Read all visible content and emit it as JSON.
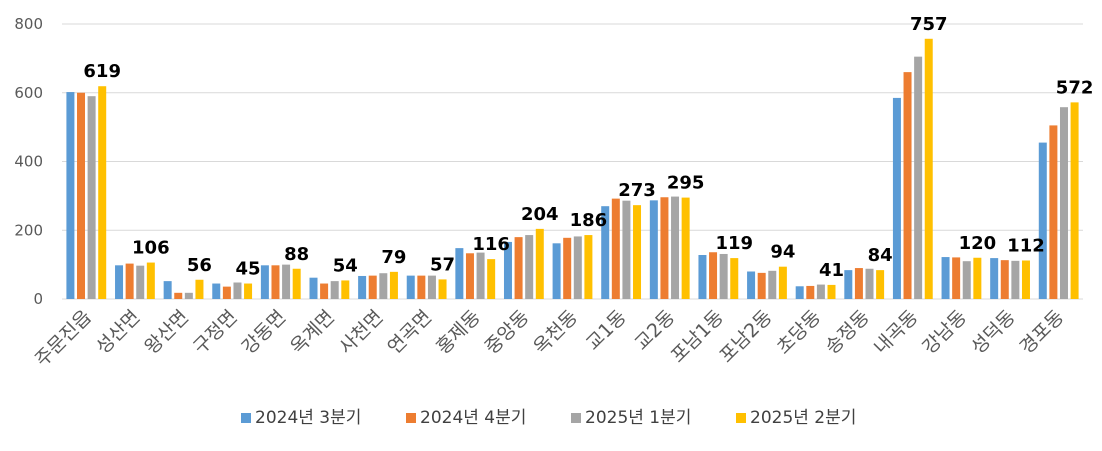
{
  "chart_data": {
    "type": "bar",
    "title": "",
    "xlabel": "",
    "ylabel": "",
    "ylim": [
      0,
      800
    ],
    "yticks": [
      0,
      200,
      400,
      600,
      800
    ],
    "grid": true,
    "legend_position": "bottom",
    "categories": [
      "주문진읍",
      "성산면",
      "왕산면",
      "구정면",
      "강동면",
      "옥계면",
      "사천면",
      "연곡면",
      "홍제동",
      "중앙동",
      "옥천동",
      "교1동",
      "교2동",
      "포남1동",
      "포남2동",
      "초당동",
      "송정동",
      "내곡동",
      "강남동",
      "성덕동",
      "경포동"
    ],
    "series": [
      {
        "name": "2024년 3분기",
        "color": "#5B9BD5",
        "values": [
          602,
          98,
          52,
          45,
          98,
          62,
          67,
          68,
          148,
          166,
          162,
          270,
          287,
          128,
          80,
          37,
          84,
          585,
          122,
          119,
          455
        ]
      },
      {
        "name": "2024년 4분기",
        "color": "#ED7D31",
        "values": [
          600,
          103,
          18,
          36,
          98,
          45,
          68,
          68,
          133,
          180,
          178,
          292,
          296,
          136,
          76,
          38,
          90,
          660,
          121,
          113,
          505
        ]
      },
      {
        "name": "2025년 1분기",
        "color": "#A5A5A5",
        "values": [
          590,
          97,
          18,
          48,
          100,
          52,
          75,
          68,
          135,
          186,
          182,
          286,
          298,
          131,
          82,
          42,
          88,
          705,
          110,
          111,
          558
        ]
      },
      {
        "name": "2025년 2분기",
        "color": "#FFC000",
        "values": [
          619,
          106,
          56,
          45,
          88,
          54,
          79,
          57,
          116,
          204,
          186,
          273,
          295,
          119,
          94,
          41,
          84,
          757,
          120,
          112,
          572
        ]
      }
    ],
    "data_labels": {
      "series_index": 3,
      "values": [
        "619",
        "106",
        "56",
        "45",
        "88",
        "54",
        "79",
        "57",
        "116",
        "204",
        "186",
        "273",
        "295",
        "119",
        "94",
        "41",
        "84",
        "757",
        "120",
        "112",
        "572"
      ]
    }
  },
  "colors": {
    "gridline": "#D9D9D9",
    "axis": "#D9D9D9"
  }
}
